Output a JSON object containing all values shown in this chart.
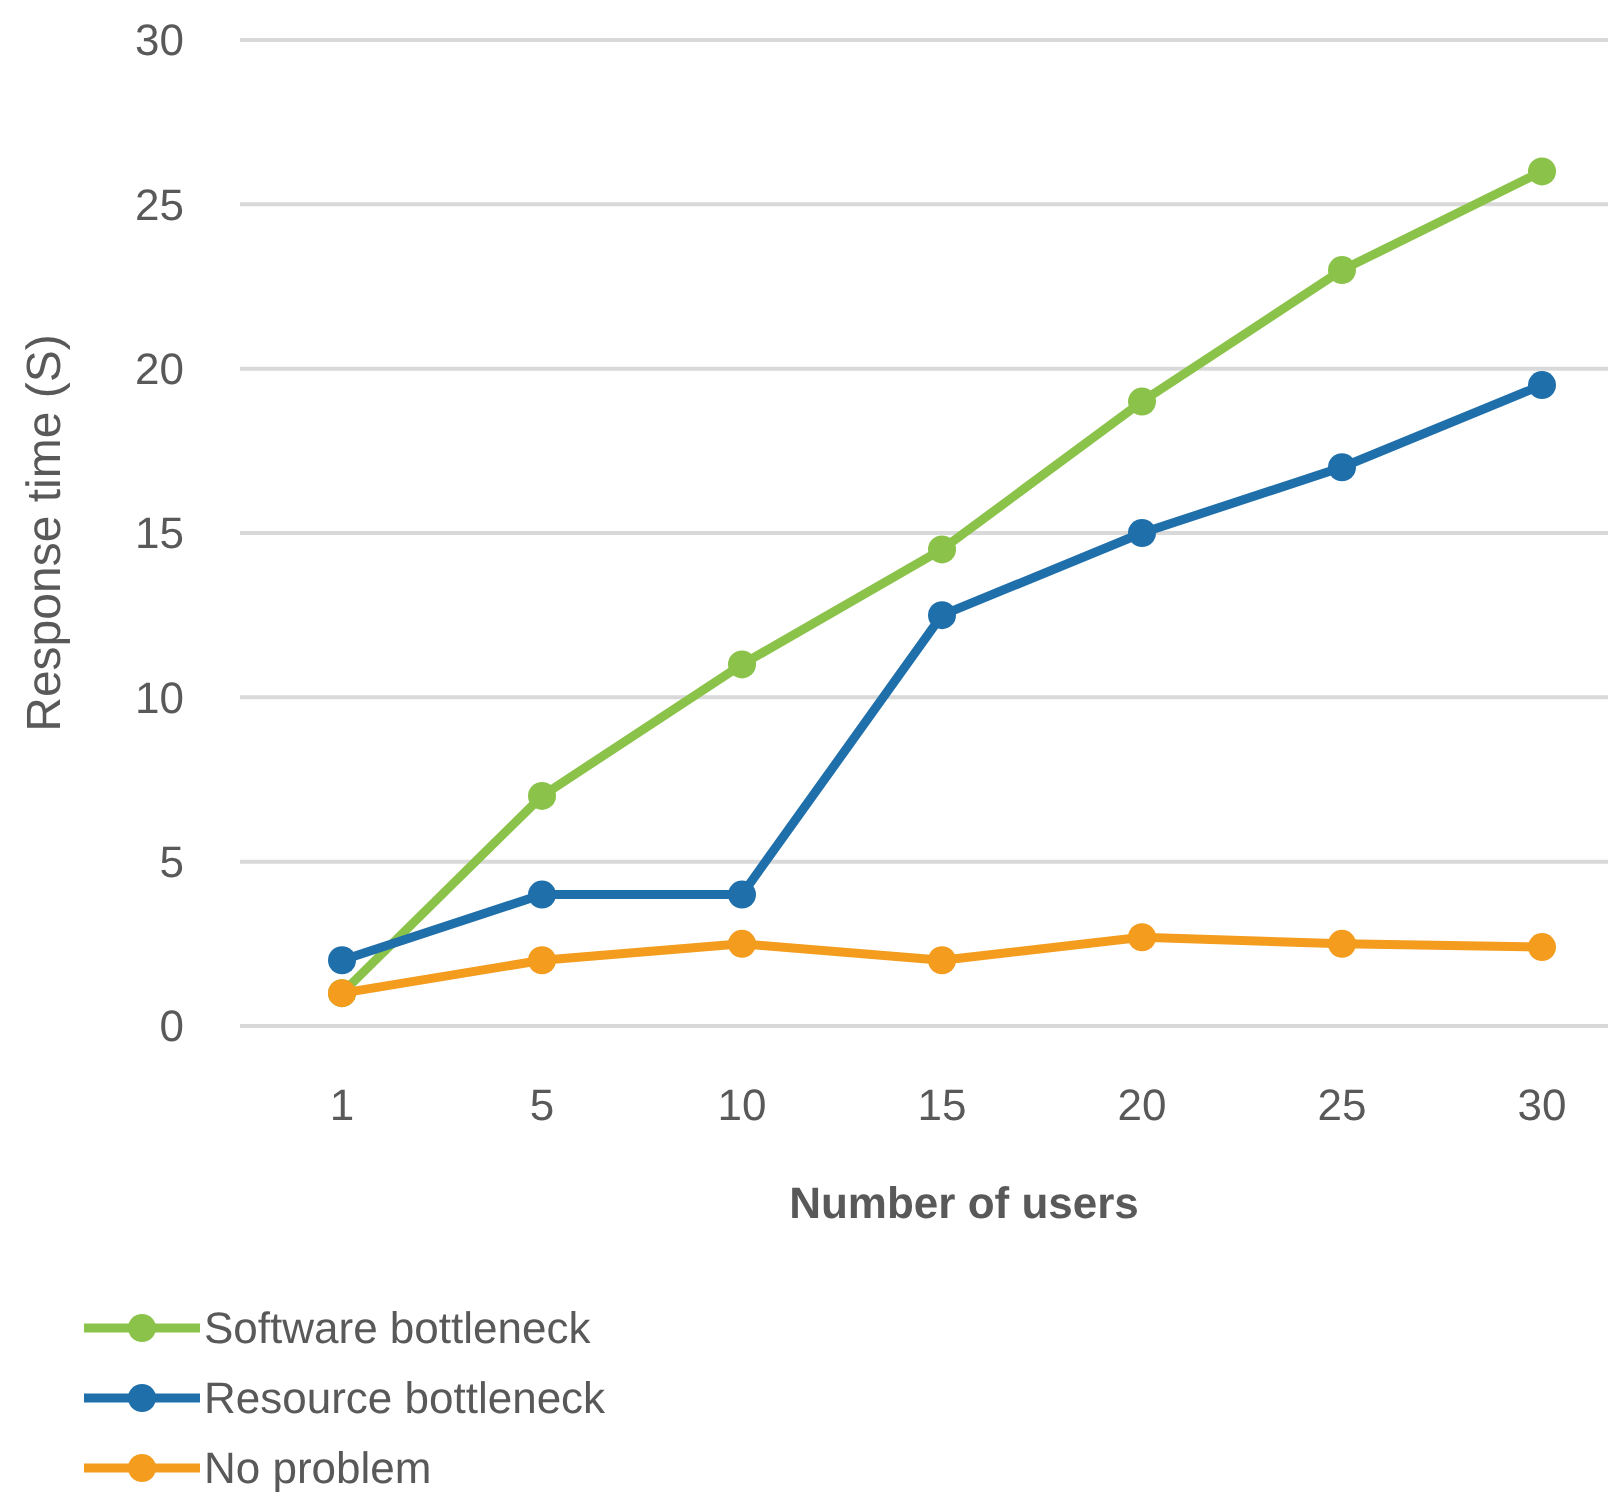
{
  "chart_data": {
    "type": "line",
    "xlabel": "Number of users",
    "ylabel": "Response time (S)",
    "categories": [
      "1",
      "5",
      "10",
      "15",
      "20",
      "25",
      "30"
    ],
    "series": [
      {
        "name": "Software bottleneck",
        "color": "#8bc34a",
        "values": [
          1,
          7,
          11,
          14.5,
          19,
          23,
          26
        ]
      },
      {
        "name": "Resource bottleneck",
        "color": "#1f6fab",
        "values": [
          2,
          4,
          4,
          12.5,
          15,
          17,
          19.5
        ]
      },
      {
        "name": "No problem",
        "color": "#f39c1d",
        "values": [
          1,
          2,
          2.5,
          2,
          2.7,
          2.5,
          2.4
        ]
      }
    ],
    "ylim": [
      0,
      30
    ],
    "yticks": [
      0,
      5,
      10,
      15,
      20,
      25,
      30
    ],
    "grid": "y",
    "legend": "bottom left",
    "marker": "circle",
    "line_style": "solid"
  }
}
